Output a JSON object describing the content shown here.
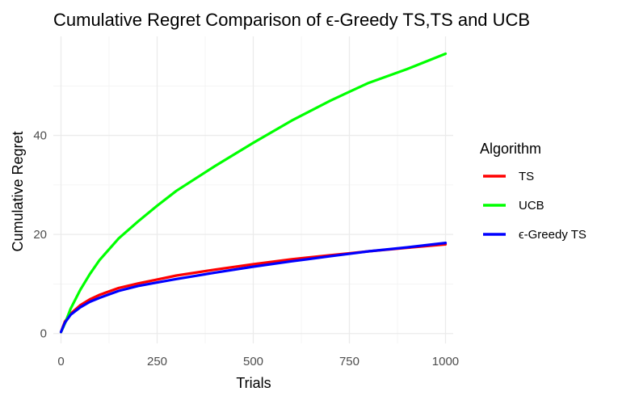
{
  "chart_data": {
    "type": "line",
    "title": "Cumulative Regret Comparison of ϵ-Greedy TS,TS and UCB",
    "xlabel": "Trials",
    "ylabel": "Cumulative Regret",
    "xlim": [
      -20,
      1020
    ],
    "ylim": [
      -2,
      60
    ],
    "x_ticks": [
      0,
      250,
      500,
      750,
      1000
    ],
    "x_tick_labels": [
      "0",
      "250",
      "500",
      "750",
      "1000"
    ],
    "y_ticks": [
      0,
      20,
      40
    ],
    "y_tick_labels": [
      "0",
      "20",
      "40"
    ],
    "grid": true,
    "legend": {
      "title": "Algorithm",
      "position": "right"
    },
    "x": [
      0,
      10,
      25,
      50,
      75,
      100,
      150,
      200,
      250,
      300,
      400,
      500,
      600,
      700,
      750,
      800,
      900,
      1000
    ],
    "series": [
      {
        "name": "TS",
        "color": "#ff0000",
        "values": [
          0.3,
          2.4,
          4.0,
          5.7,
          6.9,
          7.8,
          9.2,
          10.1,
          10.9,
          11.7,
          12.9,
          14.0,
          15.0,
          15.8,
          16.2,
          16.6,
          17.3,
          18.0
        ]
      },
      {
        "name": "UCB",
        "color": "#00ff00",
        "values": [
          0.3,
          2.0,
          5.0,
          8.8,
          12.0,
          14.8,
          19.2,
          22.6,
          25.8,
          28.8,
          33.8,
          38.5,
          43.0,
          47.0,
          48.8,
          50.6,
          53.4,
          56.5
        ]
      },
      {
        "name": "ϵ-Greedy TS",
        "color": "#0000ff",
        "values": [
          0.3,
          2.2,
          3.8,
          5.3,
          6.4,
          7.2,
          8.6,
          9.6,
          10.3,
          11.0,
          12.3,
          13.5,
          14.6,
          15.6,
          16.1,
          16.6,
          17.4,
          18.3
        ]
      }
    ]
  }
}
